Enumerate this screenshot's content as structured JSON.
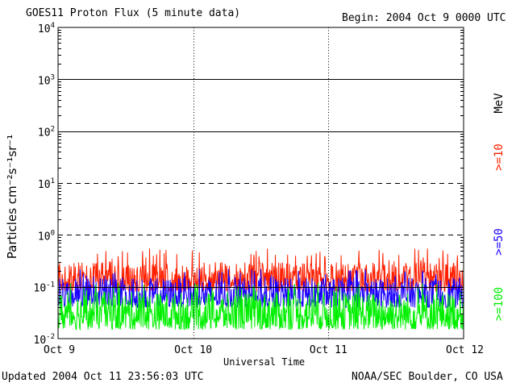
{
  "header": {
    "title": "GOES11 Proton Flux (5 minute data)",
    "begin": "Begin: 2004 Oct 9 0000 UTC"
  },
  "footer": {
    "updated": "Updated 2004 Oct 11 23:56:03 UTC",
    "credit": "NOAA/SEC Boulder, CO USA"
  },
  "chart_data": {
    "type": "line",
    "title": "GOES11 Proton Flux (5 minute data)",
    "xlabel": "Universal Time",
    "ylabel": "Particles cm⁻²s⁻¹sr⁻¹",
    "yscale": "log",
    "ylim": [
      0.01,
      10000
    ],
    "y_ticks": [
      {
        "base": "10",
        "exp": "-2"
      },
      {
        "base": "10",
        "exp": "-1"
      },
      {
        "base": "10",
        "exp": "0"
      },
      {
        "base": "10",
        "exp": "1"
      },
      {
        "base": "10",
        "exp": "2"
      },
      {
        "base": "10",
        "exp": "3"
      },
      {
        "base": "10",
        "exp": "4"
      }
    ],
    "x_ticks": [
      "Oct 9",
      "Oct 10",
      "Oct 11",
      "Oct 12"
    ],
    "xlim": [
      "2004-10-09",
      "2004-10-12"
    ],
    "unit_label": "MeV",
    "grid": true,
    "threshold_lines": [
      1,
      10
    ],
    "series": [
      {
        "name": ">=10",
        "color": "#ff2000",
        "typical_range": [
          0.08,
          0.3
        ],
        "peak": 0.55
      },
      {
        "name": ">=50",
        "color": "#1a00ff",
        "typical_range": [
          0.04,
          0.15
        ],
        "peak": 0.22
      },
      {
        "name": ">=100",
        "color": "#00f000",
        "typical_range": [
          0.015,
          0.08
        ],
        "peak": 0.12
      }
    ]
  }
}
